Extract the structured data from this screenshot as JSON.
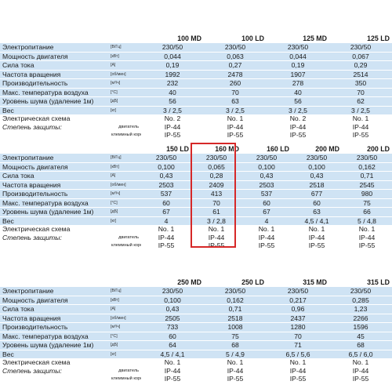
{
  "units": {
    "power_supply": "[В/Гц]",
    "motor_power": "[кВт]",
    "current": "[А]",
    "rotation": "[об/мин]",
    "capacity": "[м³/ч]",
    "temperature": "[°С]",
    "noise": "[дБ]",
    "weight": "[кг]"
  },
  "labels": {
    "power_supply": "Электропитание",
    "motor_power": "Мощность двигателя",
    "current": "Сила тока",
    "rotation": "Частота вращения",
    "capacity": "Производительность",
    "temperature": "Макс. температура воздуха",
    "noise": "Уровень шума (удаление 1м)",
    "weight": "Вес",
    "scheme": "Электрическая схема",
    "protection": "Степень защиты:",
    "motor": "двигатель",
    "terminal": "клеммный короб"
  },
  "tables": [
    {
      "models": [
        "100 MD",
        "100 LD",
        "125 MD",
        "125 LD"
      ],
      "rows": [
        [
          "230/50",
          "230/50",
          "230/50",
          "230/50"
        ],
        [
          "0,044",
          "0,063",
          "0,044",
          "0,067"
        ],
        [
          "0,19",
          "0,27",
          "0,19",
          "0,29"
        ],
        [
          "1992",
          "2478",
          "1907",
          "2514"
        ],
        [
          "232",
          "260",
          "278",
          "350"
        ],
        [
          "40",
          "70",
          "40",
          "70"
        ],
        [
          "56",
          "63",
          "56",
          "62"
        ],
        [
          "3 / 2,5",
          "3 / 2,5",
          "3 / 2,5",
          "3 / 2,5"
        ],
        [
          "No. 2",
          "No. 1",
          "No. 2",
          "No. 1"
        ],
        [
          "IP-44",
          "IP-44",
          "IP-44",
          "IP-44"
        ],
        [
          "IP-55",
          "IP-55",
          "IP-55",
          "IP-55"
        ]
      ]
    },
    {
      "models": [
        "150 LD",
        "160 MD",
        "160 LD",
        "200 MD",
        "200 LD"
      ],
      "rows": [
        [
          "230/50",
          "230/50",
          "230/50",
          "230/50",
          "230/50"
        ],
        [
          "0,100",
          "0,065",
          "0,100",
          "0,100",
          "0,162"
        ],
        [
          "0,43",
          "0,28",
          "0,43",
          "0,43",
          "0,71"
        ],
        [
          "2503",
          "2409",
          "2503",
          "2518",
          "2545"
        ],
        [
          "537",
          "413",
          "537",
          "677",
          "980"
        ],
        [
          "60",
          "70",
          "60",
          "60",
          "75"
        ],
        [
          "67",
          "61",
          "67",
          "63",
          "66"
        ],
        [
          "4",
          "3 / 2,8",
          "4",
          "4,5 / 4,1",
          "5 / 4,8"
        ],
        [
          "No. 1",
          "No. 1",
          "No. 1",
          "No. 1",
          "No. 1"
        ],
        [
          "IP-44",
          "IP-44",
          "IP-44",
          "IP-44",
          "IP-44"
        ],
        [
          "IP-55",
          "IP-55",
          "IP-55",
          "IP-55",
          "IP-55"
        ]
      ]
    },
    {
      "models": [
        "250 MD",
        "250 LD",
        "315 MD",
        "315 LD"
      ],
      "rows": [
        [
          "230/50",
          "230/50",
          "230/50",
          "230/50"
        ],
        [
          "0,100",
          "0,162",
          "0,217",
          "0,285"
        ],
        [
          "0,43",
          "0,71",
          "0,96",
          "1,23"
        ],
        [
          "2505",
          "2518",
          "2437",
          "2266"
        ],
        [
          "733",
          "1008",
          "1280",
          "1596"
        ],
        [
          "60",
          "75",
          "70",
          "45"
        ],
        [
          "64",
          "68",
          "71",
          "68"
        ],
        [
          "4,5 / 4,1",
          "5 / 4,9",
          "6,5 / 5,6",
          "6,5 / 6,0"
        ],
        [
          "No. 1",
          "No. 1",
          "No. 1",
          "No. 1"
        ],
        [
          "IP-44",
          "IP-44",
          "IP-44",
          "IP-44"
        ],
        [
          "IP-55",
          "IP-55",
          "IP-55",
          "IP-55"
        ]
      ]
    }
  ]
}
